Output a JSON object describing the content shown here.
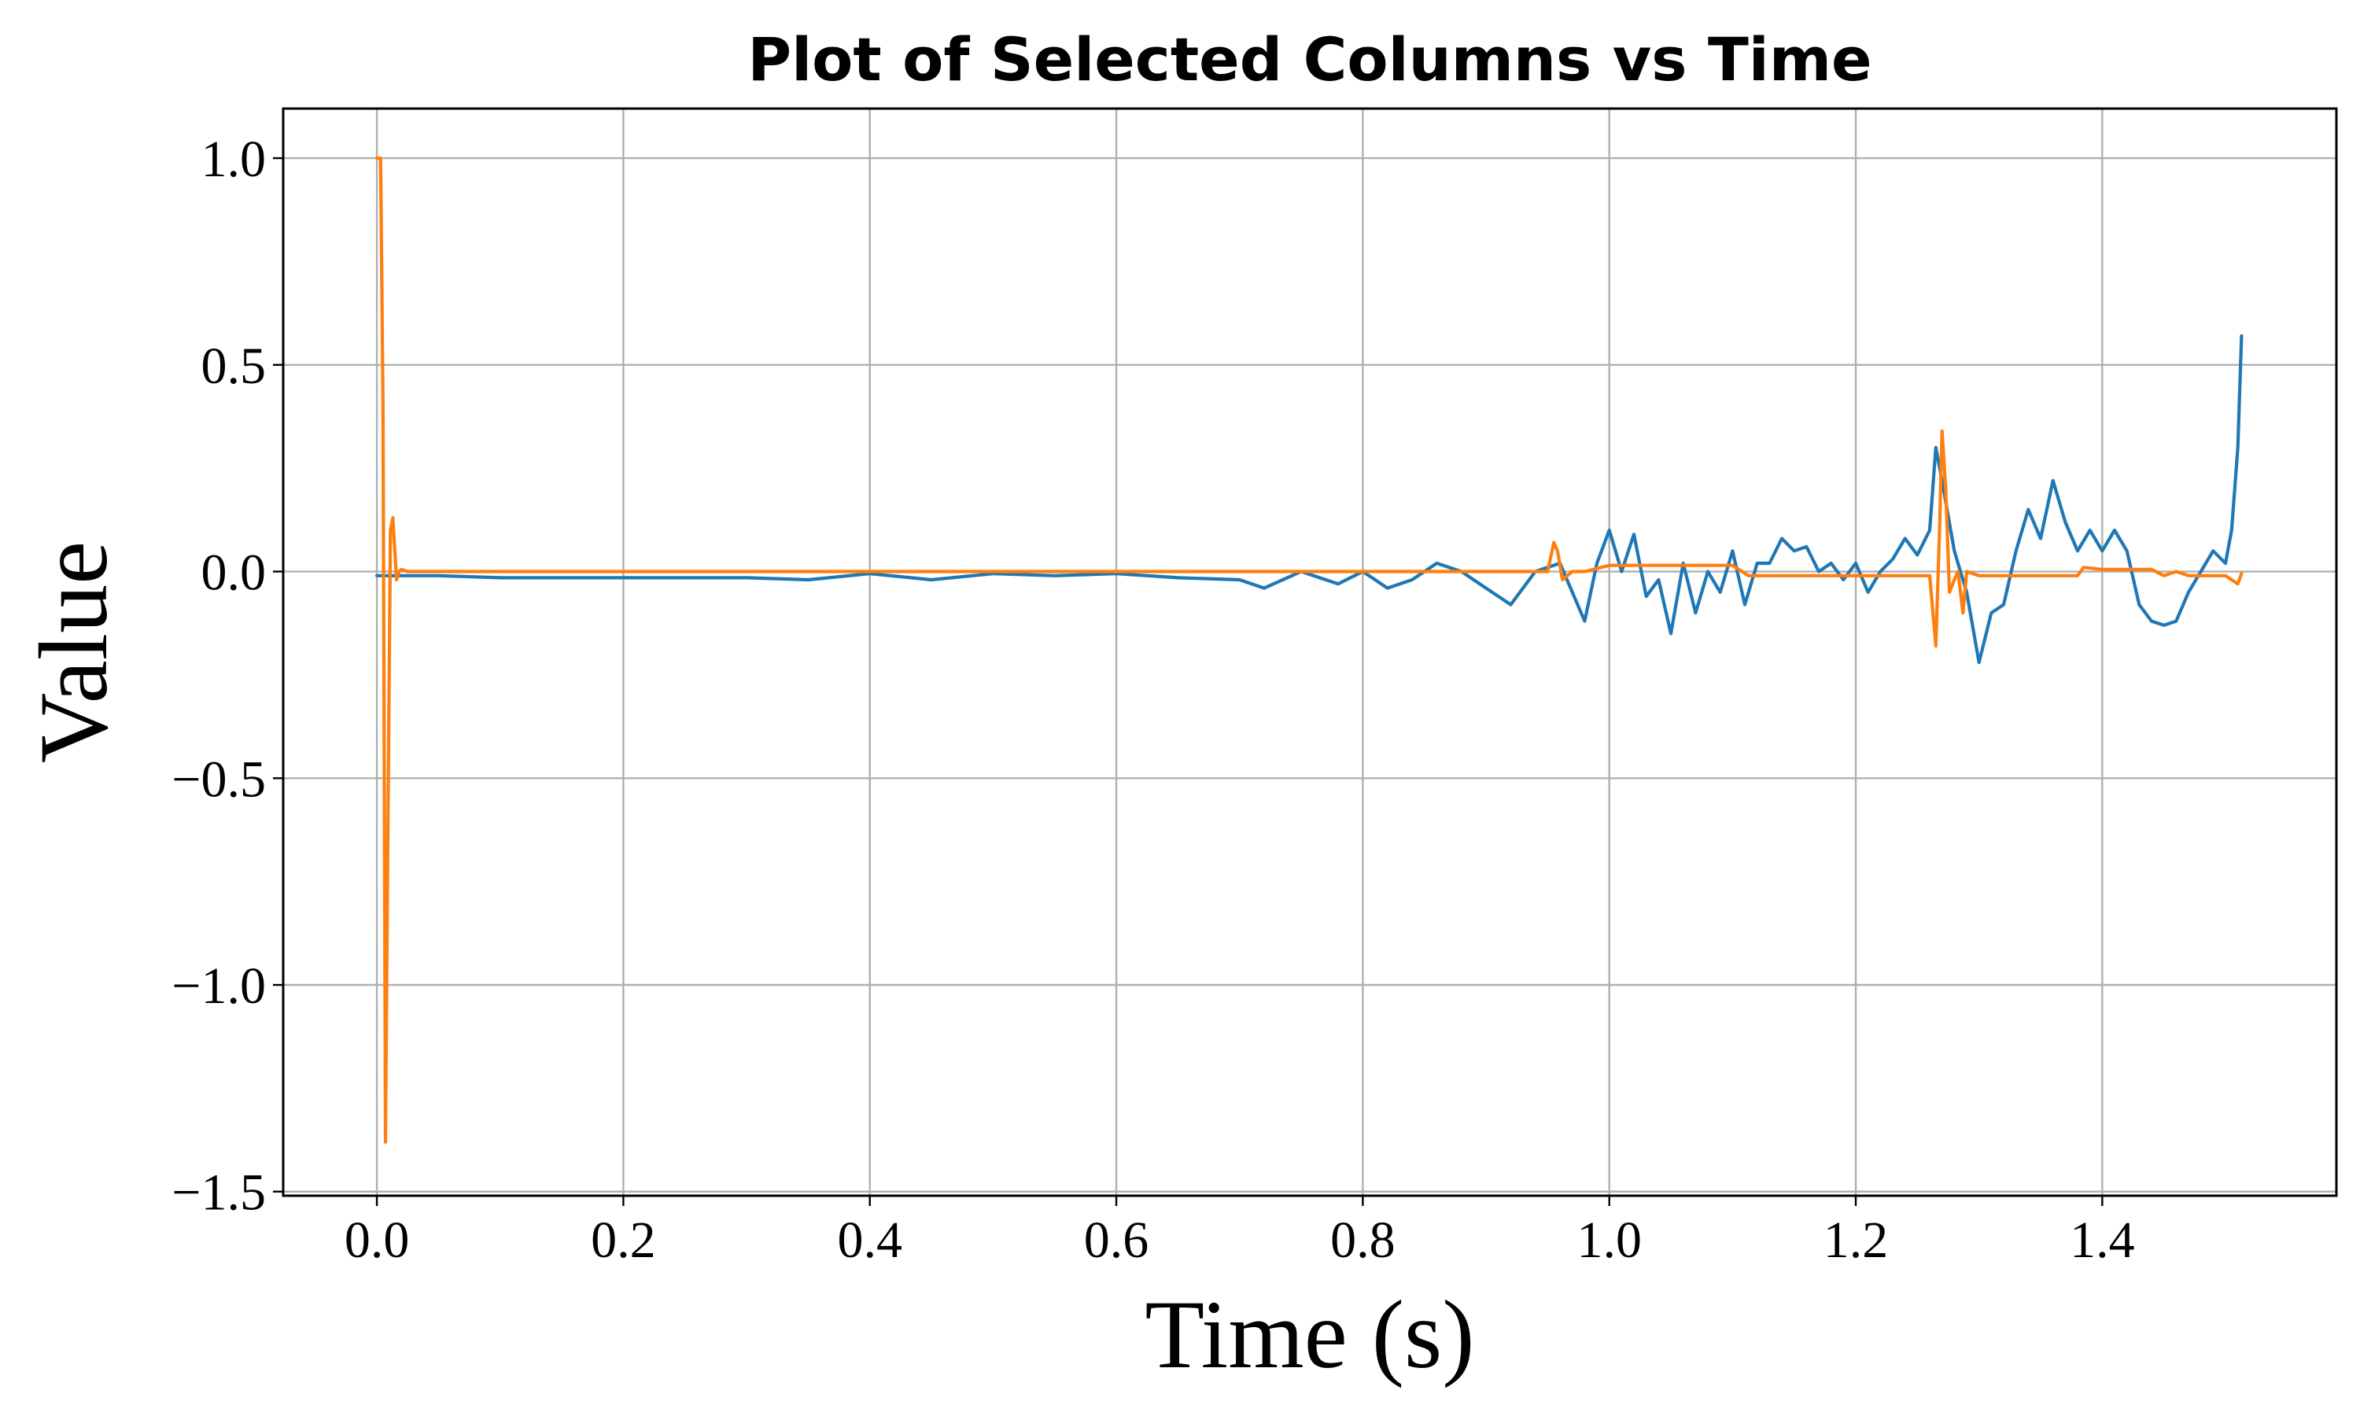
{
  "chart_data": {
    "type": "line",
    "title": "Plot of Selected Columns vs Time",
    "xlabel": "Time (s)",
    "ylabel": "Value",
    "xlim": [
      -0.076,
      1.59
    ],
    "ylim": [
      -1.51,
      1.12
    ],
    "xticks": [
      0.0,
      0.2,
      0.4,
      0.6,
      0.8,
      1.0,
      1.2,
      1.4
    ],
    "xtick_labels": [
      "0.0",
      "0.2",
      "0.4",
      "0.6",
      "0.8",
      "1.0",
      "1.2",
      "1.4"
    ],
    "yticks": [
      1.0,
      0.5,
      0.0,
      -0.5,
      -1.0,
      -1.5
    ],
    "ytick_labels": [
      "1.0",
      "0.5",
      "0.0",
      "−0.5",
      "−1.0",
      "−1.5"
    ],
    "grid": true,
    "legend": "none",
    "series": [
      {
        "color": "#1f77b4",
        "x": [
          0.0,
          0.05,
          0.1,
          0.15,
          0.2,
          0.25,
          0.3,
          0.35,
          0.4,
          0.45,
          0.5,
          0.55,
          0.6,
          0.65,
          0.7,
          0.72,
          0.75,
          0.78,
          0.8,
          0.82,
          0.84,
          0.86,
          0.88,
          0.9,
          0.92,
          0.94,
          0.96,
          0.98,
          0.99,
          1.0,
          1.01,
          1.02,
          1.03,
          1.04,
          1.05,
          1.06,
          1.07,
          1.08,
          1.09,
          1.1,
          1.11,
          1.12,
          1.13,
          1.14,
          1.15,
          1.16,
          1.17,
          1.18,
          1.19,
          1.2,
          1.21,
          1.22,
          1.23,
          1.24,
          1.25,
          1.26,
          1.265,
          1.27,
          1.28,
          1.29,
          1.3,
          1.31,
          1.32,
          1.33,
          1.34,
          1.35,
          1.36,
          1.37,
          1.38,
          1.39,
          1.4,
          1.41,
          1.42,
          1.43,
          1.44,
          1.45,
          1.46,
          1.47,
          1.48,
          1.49,
          1.5,
          1.505,
          1.51,
          1.513
        ],
        "y": [
          -0.01,
          -0.01,
          -0.015,
          -0.015,
          -0.015,
          -0.015,
          -0.015,
          -0.02,
          -0.005,
          -0.02,
          -0.005,
          -0.01,
          -0.005,
          -0.015,
          -0.02,
          -0.04,
          0.0,
          -0.03,
          0.0,
          -0.04,
          -0.02,
          0.02,
          0.0,
          -0.04,
          -0.08,
          0.0,
          0.02,
          -0.12,
          0.02,
          0.1,
          0.0,
          0.09,
          -0.06,
          -0.02,
          -0.15,
          0.02,
          -0.1,
          0.0,
          -0.05,
          0.05,
          -0.08,
          0.02,
          0.02,
          0.08,
          0.05,
          0.06,
          0.0,
          0.02,
          -0.02,
          0.02,
          -0.05,
          0.0,
          0.03,
          0.08,
          0.04,
          0.1,
          0.3,
          0.22,
          0.05,
          -0.05,
          -0.22,
          -0.1,
          -0.08,
          0.05,
          0.15,
          0.08,
          0.22,
          0.12,
          0.05,
          0.1,
          0.05,
          0.1,
          0.05,
          -0.08,
          -0.12,
          -0.13,
          -0.12,
          -0.05,
          0.0,
          0.05,
          0.02,
          0.1,
          0.3,
          0.57
        ]
      },
      {
        "color": "#ff7f0e",
        "x": [
          0.0,
          0.003,
          0.005,
          0.007,
          0.009,
          0.011,
          0.013,
          0.016,
          0.018,
          0.02,
          0.025,
          0.05,
          0.1,
          0.2,
          0.4,
          0.6,
          0.8,
          0.9,
          0.95,
          0.955,
          0.958,
          0.962,
          0.97,
          0.98,
          1.0,
          1.05,
          1.1,
          1.113,
          1.12,
          1.2,
          1.26,
          1.265,
          1.268,
          1.27,
          1.273,
          1.276,
          1.28,
          1.283,
          1.287,
          1.29,
          1.3,
          1.32,
          1.35,
          1.38,
          1.385,
          1.4,
          1.44,
          1.45,
          1.46,
          1.47,
          1.5,
          1.51,
          1.513
        ],
        "y": [
          1.0,
          1.0,
          0.4,
          -1.38,
          -0.6,
          0.1,
          0.13,
          -0.02,
          0.0,
          0.005,
          0.0,
          0.0,
          0.0,
          0.0,
          0.0,
          0.0,
          0.0,
          0.0,
          0.0,
          0.07,
          0.05,
          -0.02,
          0.0,
          0.0,
          0.015,
          0.015,
          0.015,
          -0.01,
          -0.01,
          -0.01,
          -0.01,
          -0.18,
          0.1,
          0.34,
          0.2,
          -0.05,
          -0.02,
          0.0,
          -0.1,
          0.0,
          -0.01,
          -0.01,
          -0.01,
          -0.01,
          0.01,
          0.005,
          0.005,
          -0.01,
          0.0,
          -0.01,
          -0.01,
          -0.03,
          -0.005
        ]
      }
    ]
  }
}
